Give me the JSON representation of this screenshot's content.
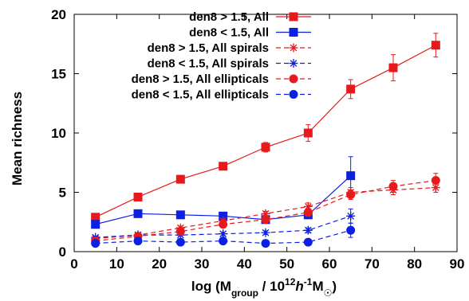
{
  "chart_data": {
    "type": "line",
    "xlabel": {
      "parts": [
        {
          "t": "log (M",
          "s": "n"
        },
        {
          "t": "group",
          "s": "sub"
        },
        {
          "t": " / 10",
          "s": "n"
        },
        {
          "t": "12",
          "s": "sup"
        },
        {
          "t": "h",
          "s": "it"
        },
        {
          "t": "-1",
          "s": "sup"
        },
        {
          "t": "M",
          "s": "n"
        },
        {
          "t": "☉",
          "s": "sub"
        },
        {
          "t": ")",
          "s": "n"
        }
      ]
    },
    "ylabel": "Mean richness",
    "xlim": [
      0,
      90
    ],
    "ylim": [
      0,
      20
    ],
    "xticks": [
      0,
      10,
      20,
      30,
      40,
      50,
      60,
      70,
      80,
      90
    ],
    "yticks": [
      0,
      5,
      10,
      15,
      20
    ],
    "legend_position": "top-left",
    "series": [
      {
        "name": "den8 > 1.5, All",
        "color": "#e8191c",
        "marker": "square",
        "dash": false,
        "x": [
          5,
          15,
          25,
          35,
          45,
          55,
          65,
          75,
          85
        ],
        "y": [
          2.9,
          4.6,
          6.1,
          7.2,
          8.8,
          10.0,
          13.7,
          15.5,
          17.4
        ],
        "err": [
          0.2,
          0.2,
          0.25,
          0.3,
          0.4,
          0.7,
          0.8,
          1.1,
          1.0
        ]
      },
      {
        "name": "den8 < 1.5, All",
        "color": "#0b20e0",
        "marker": "square",
        "dash": false,
        "x": [
          5,
          15,
          25,
          35,
          45,
          55,
          65
        ],
        "y": [
          2.3,
          3.2,
          3.1,
          3.0,
          2.7,
          3.1,
          6.4
        ],
        "err": [
          0.1,
          0.15,
          0.15,
          0.15,
          0.2,
          0.3,
          1.6
        ]
      },
      {
        "name": "den8 > 1.5, All spirals",
        "color": "#e8191c",
        "marker": "star",
        "dash": true,
        "x": [
          5,
          15,
          25,
          35,
          45,
          55,
          65,
          75,
          85
        ],
        "y": [
          1.1,
          1.4,
          2.0,
          2.6,
          3.2,
          3.8,
          5.0,
          5.2,
          5.4
        ],
        "err": [
          0.1,
          0.1,
          0.15,
          0.15,
          0.2,
          0.3,
          0.4,
          0.4,
          0.4
        ]
      },
      {
        "name": "den8 < 1.5, All spirals",
        "color": "#0b20e0",
        "marker": "star",
        "dash": true,
        "x": [
          5,
          15,
          25,
          35,
          45,
          55,
          65
        ],
        "y": [
          1.2,
          1.4,
          1.4,
          1.5,
          1.6,
          1.8,
          3.0
        ],
        "err": [
          0.1,
          0.1,
          0.1,
          0.15,
          0.15,
          0.2,
          0.6
        ]
      },
      {
        "name": "den8 > 1.5, All ellipticals",
        "color": "#e8191c",
        "marker": "circle",
        "dash": true,
        "x": [
          5,
          15,
          25,
          35,
          45,
          55,
          65,
          75,
          85
        ],
        "y": [
          0.9,
          1.3,
          1.7,
          2.3,
          2.7,
          3.3,
          4.8,
          5.5,
          6.0
        ],
        "err": [
          0.1,
          0.1,
          0.15,
          0.2,
          0.2,
          0.3,
          0.4,
          0.5,
          0.6
        ]
      },
      {
        "name": "den8 < 1.5, All ellipticals",
        "color": "#0b20e0",
        "marker": "circle",
        "dash": true,
        "x": [
          5,
          15,
          25,
          35,
          45,
          55,
          65
        ],
        "y": [
          0.7,
          0.9,
          0.8,
          0.9,
          0.7,
          0.8,
          1.8
        ],
        "err": [
          0.1,
          0.1,
          0.1,
          0.1,
          0.1,
          0.15,
          0.6
        ]
      }
    ]
  }
}
